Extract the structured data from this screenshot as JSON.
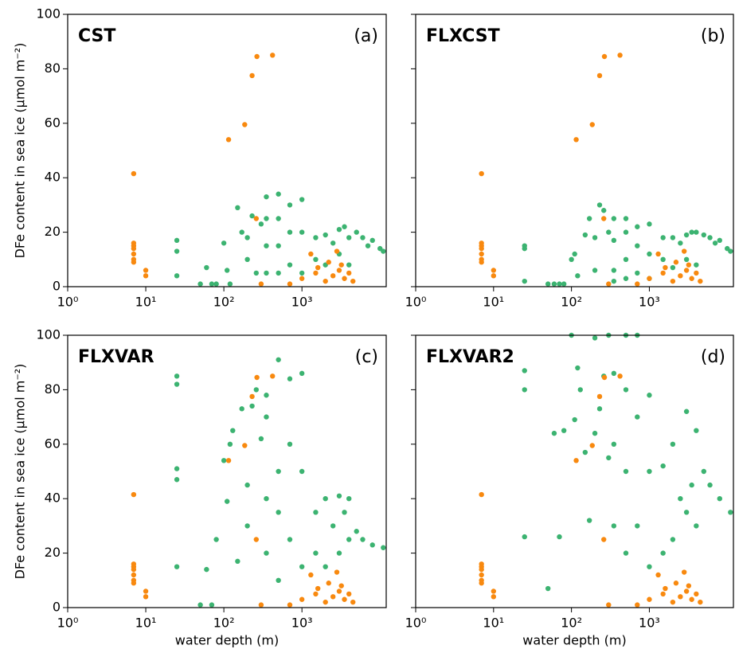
{
  "chart_data": [
    {
      "type": "scatter",
      "title": "CST",
      "label": "(a)",
      "xlim": [
        1,
        12000
      ],
      "ylim": [
        0,
        100
      ],
      "log_x": true,
      "xticks": [
        {
          "value": 1,
          "label": "10⁰"
        },
        {
          "value": 10,
          "label": "10¹"
        },
        {
          "value": 100,
          "label": "10²"
        },
        {
          "value": 1000,
          "label": "10³"
        }
      ],
      "yticks": [
        0,
        20,
        40,
        60,
        80,
        100
      ],
      "ylabel": "DFe content in sea ice (μmol m⁻²)",
      "series": [
        {
          "color": "#3cb371",
          "x": [
            25,
            25,
            25,
            50,
            60,
            70,
            80,
            100,
            110,
            120,
            150,
            170,
            200,
            200,
            230,
            260,
            300,
            350,
            350,
            350,
            350,
            500,
            500,
            500,
            500,
            700,
            700,
            700,
            1000,
            1000,
            1000,
            1500,
            1500,
            2000,
            2000,
            2500,
            3000,
            3000,
            3500,
            4000,
            4000,
            5000,
            6000,
            7000,
            8000,
            10000,
            11000
          ],
          "values": [
            17,
            13,
            4,
            1,
            7,
            1,
            1,
            16,
            6,
            1,
            29,
            20,
            18,
            10,
            26,
            5,
            23,
            33,
            25,
            15,
            5,
            34,
            25,
            15,
            5,
            30,
            20,
            8,
            32,
            20,
            5,
            18,
            10,
            19,
            8,
            16,
            21,
            12,
            22,
            18,
            8,
            20,
            18,
            15,
            17,
            14,
            13
          ]
        },
        {
          "color": "#f8890f",
          "x": [
            7,
            7,
            7,
            7,
            7,
            7,
            7,
            10,
            10,
            115,
            185,
            230,
            265,
            420,
            260,
            300,
            700,
            1000,
            1300,
            1500,
            1600,
            2000,
            2200,
            2500,
            2800,
            3000,
            3200,
            3500,
            4000,
            4500
          ],
          "values": [
            41.5,
            16,
            15,
            14,
            12,
            10,
            9,
            6,
            4,
            54,
            59.5,
            77.5,
            84.5,
            85,
            25,
            1,
            1,
            3,
            12,
            5,
            7,
            2,
            9,
            4,
            13,
            6,
            8,
            3,
            5,
            2
          ]
        }
      ]
    },
    {
      "type": "scatter",
      "title": "FLXCST",
      "label": "(b)",
      "xlim": [
        1,
        12000
      ],
      "ylim": [
        0,
        100
      ],
      "log_x": true,
      "xticks": [
        {
          "value": 1,
          "label": "10⁰"
        },
        {
          "value": 10,
          "label": "10¹"
        },
        {
          "value": 100,
          "label": "10²"
        },
        {
          "value": 1000,
          "label": "10³"
        }
      ],
      "series": [
        {
          "color": "#3cb371",
          "x": [
            25,
            25,
            25,
            50,
            60,
            70,
            80,
            100,
            110,
            120,
            150,
            170,
            200,
            200,
            230,
            260,
            300,
            350,
            350,
            350,
            350,
            500,
            500,
            500,
            500,
            700,
            700,
            700,
            1000,
            1000,
            1000,
            1500,
            1500,
            2000,
            2000,
            2500,
            3000,
            3000,
            3500,
            4000,
            4000,
            5000,
            6000,
            7000,
            8000,
            10000,
            11000
          ],
          "values": [
            15,
            14,
            2,
            1,
            1,
            1,
            1,
            10,
            12,
            4,
            19,
            25,
            18,
            6,
            30,
            28,
            20,
            25,
            17,
            6,
            2,
            25,
            20,
            10,
            3,
            22,
            15,
            5,
            23,
            12,
            3,
            18,
            10,
            18,
            7,
            16,
            19,
            10,
            20,
            20,
            8,
            19,
            18,
            16,
            17,
            14,
            13
          ]
        },
        {
          "color": "#f8890f",
          "x": [
            7,
            7,
            7,
            7,
            7,
            7,
            7,
            10,
            10,
            115,
            185,
            230,
            265,
            420,
            260,
            300,
            700,
            1000,
            1300,
            1500,
            1600,
            2000,
            2200,
            2500,
            2800,
            3000,
            3200,
            3500,
            4000,
            4500
          ],
          "values": [
            41.5,
            16,
            15,
            14,
            12,
            10,
            9,
            6,
            4,
            54,
            59.5,
            77.5,
            84.5,
            85,
            25,
            1,
            1,
            3,
            12,
            5,
            7,
            2,
            9,
            4,
            13,
            6,
            8,
            3,
            5,
            2
          ]
        }
      ]
    },
    {
      "type": "scatter",
      "title": "FLXVAR",
      "label": "(c)",
      "xlim": [
        1,
        12000
      ],
      "ylim": [
        0,
        100
      ],
      "log_x": true,
      "xticks": [
        {
          "value": 1,
          "label": "10⁰"
        },
        {
          "value": 10,
          "label": "10¹"
        },
        {
          "value": 100,
          "label": "10²"
        },
        {
          "value": 1000,
          "label": "10³"
        }
      ],
      "yticks": [
        0,
        20,
        40,
        60,
        80,
        100
      ],
      "ylabel": "DFe content in sea ice (μmol m⁻²)",
      "xlabel": "water depth (m)",
      "series": [
        {
          "color": "#3cb371",
          "x": [
            25,
            25,
            25,
            25,
            25,
            50,
            60,
            70,
            80,
            100,
            110,
            120,
            130,
            150,
            170,
            200,
            200,
            230,
            260,
            300,
            350,
            350,
            350,
            350,
            500,
            500,
            500,
            500,
            700,
            700,
            700,
            1000,
            1000,
            1000,
            1500,
            1500,
            2000,
            2000,
            2500,
            3000,
            3000,
            3500,
            4000,
            4000,
            5000,
            6000,
            8000,
            11000
          ],
          "values": [
            85,
            82,
            51,
            47,
            15,
            1,
            14,
            1,
            25,
            54,
            39,
            60,
            65,
            17,
            73,
            45,
            30,
            74,
            80,
            62,
            78,
            70,
            40,
            20,
            91,
            50,
            35,
            10,
            84,
            60,
            25,
            86,
            50,
            15,
            35,
            20,
            40,
            15,
            30,
            41,
            20,
            35,
            40,
            25,
            28,
            25,
            23,
            22
          ]
        },
        {
          "color": "#f8890f",
          "x": [
            7,
            7,
            7,
            7,
            7,
            7,
            7,
            10,
            10,
            115,
            185,
            230,
            265,
            420,
            260,
            300,
            700,
            1000,
            1300,
            1500,
            1600,
            2000,
            2200,
            2500,
            2800,
            3000,
            3200,
            3500,
            4000,
            4500
          ],
          "values": [
            41.5,
            16,
            15,
            14,
            12,
            10,
            9,
            6,
            4,
            54,
            59.5,
            77.5,
            84.5,
            85,
            25,
            1,
            1,
            3,
            12,
            5,
            7,
            2,
            9,
            4,
            13,
            6,
            8,
            3,
            5,
            2
          ]
        }
      ]
    },
    {
      "type": "scatter",
      "title": "FLXVAR2",
      "label": "(d)",
      "xlim": [
        1,
        12000
      ],
      "ylim": [
        0,
        100
      ],
      "log_x": true,
      "xticks": [
        {
          "value": 1,
          "label": "10⁰"
        },
        {
          "value": 10,
          "label": "10¹"
        },
        {
          "value": 100,
          "label": "10²"
        },
        {
          "value": 1000,
          "label": "10³"
        }
      ],
      "xlabel": "water depth (m)",
      "series": [
        {
          "color": "#3cb371",
          "x": [
            25,
            25,
            25,
            50,
            60,
            70,
            80,
            100,
            110,
            120,
            130,
            150,
            170,
            200,
            200,
            230,
            260,
            300,
            300,
            350,
            350,
            350,
            500,
            500,
            500,
            500,
            700,
            700,
            700,
            1000,
            1000,
            1000,
            1500,
            1500,
            2000,
            2000,
            2500,
            3000,
            3000,
            3500,
            4000,
            4000,
            5000,
            6000,
            8000,
            11000
          ],
          "values": [
            87,
            80,
            26,
            7,
            64,
            26,
            65,
            100,
            69,
            88,
            80,
            57,
            32,
            99,
            64,
            73,
            85,
            100,
            55,
            86,
            60,
            30,
            100,
            80,
            50,
            20,
            100,
            70,
            30,
            78,
            50,
            15,
            52,
            20,
            60,
            25,
            40,
            72,
            35,
            45,
            65,
            30,
            50,
            45,
            40,
            35
          ]
        },
        {
          "color": "#f8890f",
          "x": [
            7,
            7,
            7,
            7,
            7,
            7,
            7,
            10,
            10,
            115,
            185,
            230,
            265,
            420,
            260,
            300,
            700,
            1000,
            1300,
            1500,
            1600,
            2000,
            2200,
            2500,
            2800,
            3000,
            3200,
            3500,
            4000,
            4500
          ],
          "values": [
            41.5,
            16,
            15,
            14,
            12,
            10,
            9,
            6,
            4,
            54,
            59.5,
            77.5,
            84.5,
            85,
            25,
            1,
            1,
            3,
            12,
            5,
            7,
            2,
            9,
            4,
            13,
            6,
            8,
            3,
            5,
            2
          ]
        }
      ]
    }
  ]
}
